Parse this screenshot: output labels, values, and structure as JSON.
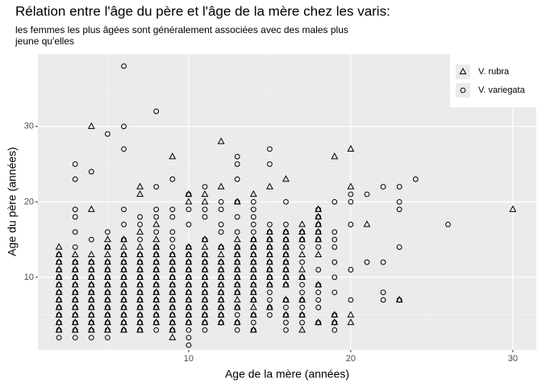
{
  "chart_data": {
    "type": "scatter",
    "title": "Rélation entre l'âge du père et l'âge de la mère chez les varis:",
    "subtitle": [
      "les femmes les plus âgées sont généralement associées avec des males plus",
      "jeune qu'elles"
    ],
    "x_label": "Age de la mère (années)",
    "y_label": "Age du père (années)",
    "xlim": [
      0.7,
      31.45
    ],
    "ylim": [
      0.37,
      39.6
    ],
    "xticks": [
      10,
      20,
      30
    ],
    "yticks": [
      10,
      20,
      30
    ],
    "xminor": [
      5,
      15,
      25
    ],
    "yminor": [
      5,
      15,
      25,
      35
    ],
    "grid": true,
    "legend_position": "top-right",
    "series": [
      {
        "name": "V. rubra",
        "marker": "triangle",
        "color": "#000000",
        "x": [
          2,
          2,
          2,
          2,
          2,
          2,
          2,
          2,
          2,
          2,
          2,
          2,
          3,
          3,
          3,
          3,
          3,
          3,
          3,
          3,
          3,
          3,
          3,
          4,
          4,
          4,
          4,
          4,
          4,
          4,
          4,
          4,
          4,
          4,
          4,
          4,
          5,
          5,
          5,
          5,
          5,
          5,
          5,
          5,
          5,
          5,
          5,
          5,
          5,
          6,
          6,
          6,
          6,
          6,
          6,
          6,
          6,
          6,
          6,
          6,
          6,
          6,
          7,
          7,
          7,
          7,
          7,
          7,
          7,
          7,
          7,
          7,
          7,
          7,
          7,
          7,
          7,
          8,
          8,
          8,
          8,
          8,
          8,
          8,
          8,
          8,
          8,
          8,
          8,
          8,
          9,
          9,
          9,
          9,
          9,
          9,
          9,
          9,
          9,
          9,
          9,
          9,
          9,
          10,
          10,
          10,
          10,
          10,
          10,
          10,
          10,
          10,
          10,
          10,
          10,
          10,
          11,
          11,
          11,
          11,
          11,
          11,
          11,
          11,
          11,
          11,
          11,
          11,
          11,
          11,
          12,
          12,
          12,
          12,
          12,
          12,
          12,
          12,
          12,
          12,
          12,
          12,
          12,
          13,
          13,
          13,
          13,
          13,
          13,
          13,
          13,
          13,
          13,
          13,
          13,
          14,
          14,
          14,
          14,
          14,
          14,
          14,
          14,
          14,
          14,
          14,
          14,
          14,
          15,
          15,
          15,
          15,
          15,
          15,
          15,
          15,
          15,
          15,
          16,
          16,
          16,
          16,
          16,
          16,
          16,
          16,
          16,
          16,
          16,
          17,
          17,
          17,
          17,
          17,
          17,
          17,
          17,
          17,
          18,
          18,
          18,
          18,
          18,
          18,
          18,
          18,
          19,
          19,
          19,
          20,
          20,
          20,
          20,
          21,
          23,
          30
        ],
        "values": [
          3,
          4,
          5,
          6,
          7,
          8,
          9,
          10,
          11,
          12,
          13,
          14,
          3,
          4,
          5,
          6,
          7,
          8,
          9,
          10,
          11,
          12,
          13,
          3,
          4,
          5,
          6,
          7,
          8,
          9,
          10,
          11,
          12,
          13,
          19,
          30,
          3,
          4,
          5,
          6,
          7,
          8,
          9,
          10,
          11,
          12,
          13,
          14,
          15,
          3,
          4,
          5,
          6,
          7,
          8,
          9,
          10,
          11,
          12,
          13,
          14,
          15,
          3,
          4,
          5,
          6,
          7,
          8,
          9,
          10,
          11,
          12,
          13,
          14,
          16,
          21,
          22,
          4,
          5,
          6,
          7,
          8,
          9,
          10,
          11,
          12,
          13,
          14,
          15,
          17,
          2,
          3,
          4,
          5,
          6,
          7,
          8,
          9,
          10,
          11,
          12,
          13,
          26,
          4,
          5,
          6,
          7,
          8,
          9,
          10,
          11,
          12,
          13,
          14,
          20,
          21,
          4,
          5,
          6,
          7,
          8,
          9,
          10,
          11,
          12,
          13,
          14,
          15,
          20,
          21,
          4,
          5,
          6,
          7,
          8,
          9,
          10,
          11,
          12,
          13,
          14,
          22,
          28,
          4,
          6,
          7,
          8,
          9,
          10,
          11,
          12,
          13,
          14,
          15,
          20,
          3,
          5,
          6,
          7,
          8,
          9,
          10,
          11,
          12,
          13,
          14,
          15,
          21,
          6,
          9,
          10,
          11,
          12,
          13,
          14,
          15,
          16,
          22,
          5,
          7,
          9,
          10,
          11,
          12,
          13,
          14,
          15,
          16,
          23,
          3,
          5,
          7,
          10,
          11,
          13,
          15,
          16,
          17,
          4,
          9,
          13,
          15,
          16,
          17,
          18,
          19,
          4,
          5,
          26,
          4,
          5,
          22,
          27,
          17,
          7,
          19
        ]
      },
      {
        "name": "V. variegata",
        "marker": "circle",
        "color": "#000000",
        "x": [
          2,
          2,
          2,
          2,
          2,
          2,
          2,
          2,
          2,
          2,
          2,
          2,
          3,
          3,
          3,
          3,
          3,
          3,
          3,
          3,
          3,
          3,
          3,
          3,
          3,
          3,
          3,
          3,
          3,
          4,
          4,
          4,
          4,
          4,
          4,
          4,
          4,
          4,
          4,
          4,
          4,
          4,
          5,
          5,
          5,
          5,
          5,
          5,
          5,
          5,
          5,
          5,
          5,
          5,
          5,
          5,
          6,
          6,
          6,
          6,
          6,
          6,
          6,
          6,
          6,
          6,
          6,
          6,
          6,
          6,
          6,
          6,
          6,
          7,
          7,
          7,
          7,
          7,
          7,
          7,
          7,
          7,
          7,
          7,
          7,
          7,
          7,
          8,
          8,
          8,
          8,
          8,
          8,
          8,
          8,
          8,
          8,
          8,
          8,
          8,
          8,
          8,
          8,
          8,
          9,
          9,
          9,
          9,
          9,
          9,
          9,
          9,
          9,
          9,
          9,
          9,
          9,
          9,
          9,
          9,
          9,
          10,
          10,
          10,
          10,
          10,
          10,
          10,
          10,
          10,
          10,
          10,
          10,
          10,
          10,
          10,
          10,
          10,
          11,
          11,
          11,
          11,
          11,
          11,
          11,
          11,
          11,
          11,
          11,
          11,
          11,
          11,
          11,
          12,
          12,
          12,
          12,
          12,
          12,
          12,
          12,
          12,
          12,
          12,
          12,
          12,
          12,
          13,
          13,
          13,
          13,
          13,
          13,
          13,
          13,
          13,
          13,
          13,
          13,
          13,
          13,
          13,
          13,
          13,
          14,
          14,
          14,
          14,
          14,
          14,
          14,
          14,
          14,
          14,
          14,
          14,
          14,
          14,
          14,
          14,
          14,
          15,
          15,
          15,
          15,
          15,
          15,
          15,
          15,
          15,
          15,
          15,
          15,
          15,
          15,
          15,
          16,
          16,
          16,
          16,
          16,
          16,
          16,
          16,
          16,
          16,
          16,
          16,
          16,
          16,
          16,
          17,
          17,
          17,
          17,
          17,
          17,
          17,
          17,
          17,
          17,
          17,
          18,
          18,
          18,
          18,
          18,
          18,
          18,
          18,
          18,
          18,
          18,
          18,
          19,
          19,
          19,
          19,
          19,
          19,
          19,
          19,
          19,
          19,
          20,
          20,
          20,
          20,
          20,
          21,
          21,
          22,
          22,
          22,
          22,
          23,
          23,
          23,
          23,
          23,
          24,
          26
        ],
        "values": [
          2,
          3,
          4,
          5,
          6,
          7,
          8,
          9,
          10,
          11,
          12,
          13,
          2,
          3,
          4,
          5,
          6,
          7,
          8,
          9,
          10,
          11,
          12,
          14,
          16,
          18,
          19,
          23,
          25,
          2,
          3,
          4,
          5,
          6,
          7,
          8,
          9,
          10,
          11,
          12,
          15,
          24,
          2,
          3,
          4,
          5,
          6,
          7,
          8,
          9,
          10,
          11,
          12,
          14,
          16,
          29,
          3,
          4,
          5,
          6,
          7,
          8,
          9,
          10,
          11,
          12,
          13,
          15,
          17,
          19,
          27,
          30,
          38,
          3,
          4,
          5,
          6,
          7,
          8,
          9,
          10,
          11,
          12,
          13,
          15,
          17,
          18,
          3,
          4,
          5,
          6,
          7,
          8,
          9,
          10,
          11,
          12,
          13,
          14,
          16,
          18,
          19,
          22,
          32,
          3,
          4,
          5,
          6,
          7,
          8,
          9,
          10,
          11,
          12,
          13,
          14,
          15,
          16,
          18,
          19,
          23,
          1,
          2,
          3,
          4,
          5,
          6,
          7,
          8,
          9,
          10,
          11,
          12,
          13,
          14,
          17,
          19,
          21,
          3,
          4,
          5,
          6,
          7,
          8,
          9,
          10,
          11,
          12,
          13,
          15,
          18,
          19,
          22,
          4,
          5,
          6,
          7,
          8,
          9,
          10,
          11,
          12,
          14,
          16,
          17,
          19,
          20,
          3,
          4,
          5,
          6,
          8,
          9,
          10,
          11,
          12,
          13,
          14,
          16,
          18,
          20,
          23,
          25,
          26,
          3,
          4,
          5,
          7,
          8,
          9,
          10,
          11,
          12,
          13,
          14,
          15,
          16,
          17,
          18,
          19,
          20,
          5,
          6,
          7,
          8,
          9,
          10,
          11,
          12,
          13,
          14,
          15,
          16,
          17,
          25,
          27,
          3,
          4,
          5,
          6,
          7,
          9,
          10,
          11,
          12,
          13,
          14,
          15,
          16,
          17,
          20,
          4,
          5,
          6,
          7,
          8,
          9,
          10,
          12,
          14,
          15,
          16,
          4,
          6,
          7,
          8,
          9,
          11,
          14,
          15,
          16,
          17,
          18,
          19,
          3,
          4,
          5,
          8,
          10,
          12,
          14,
          15,
          16,
          20,
          7,
          11,
          17,
          20,
          21,
          12,
          21,
          7,
          8,
          12,
          22,
          7,
          14,
          19,
          20,
          22,
          23,
          17
        ]
      }
    ]
  }
}
